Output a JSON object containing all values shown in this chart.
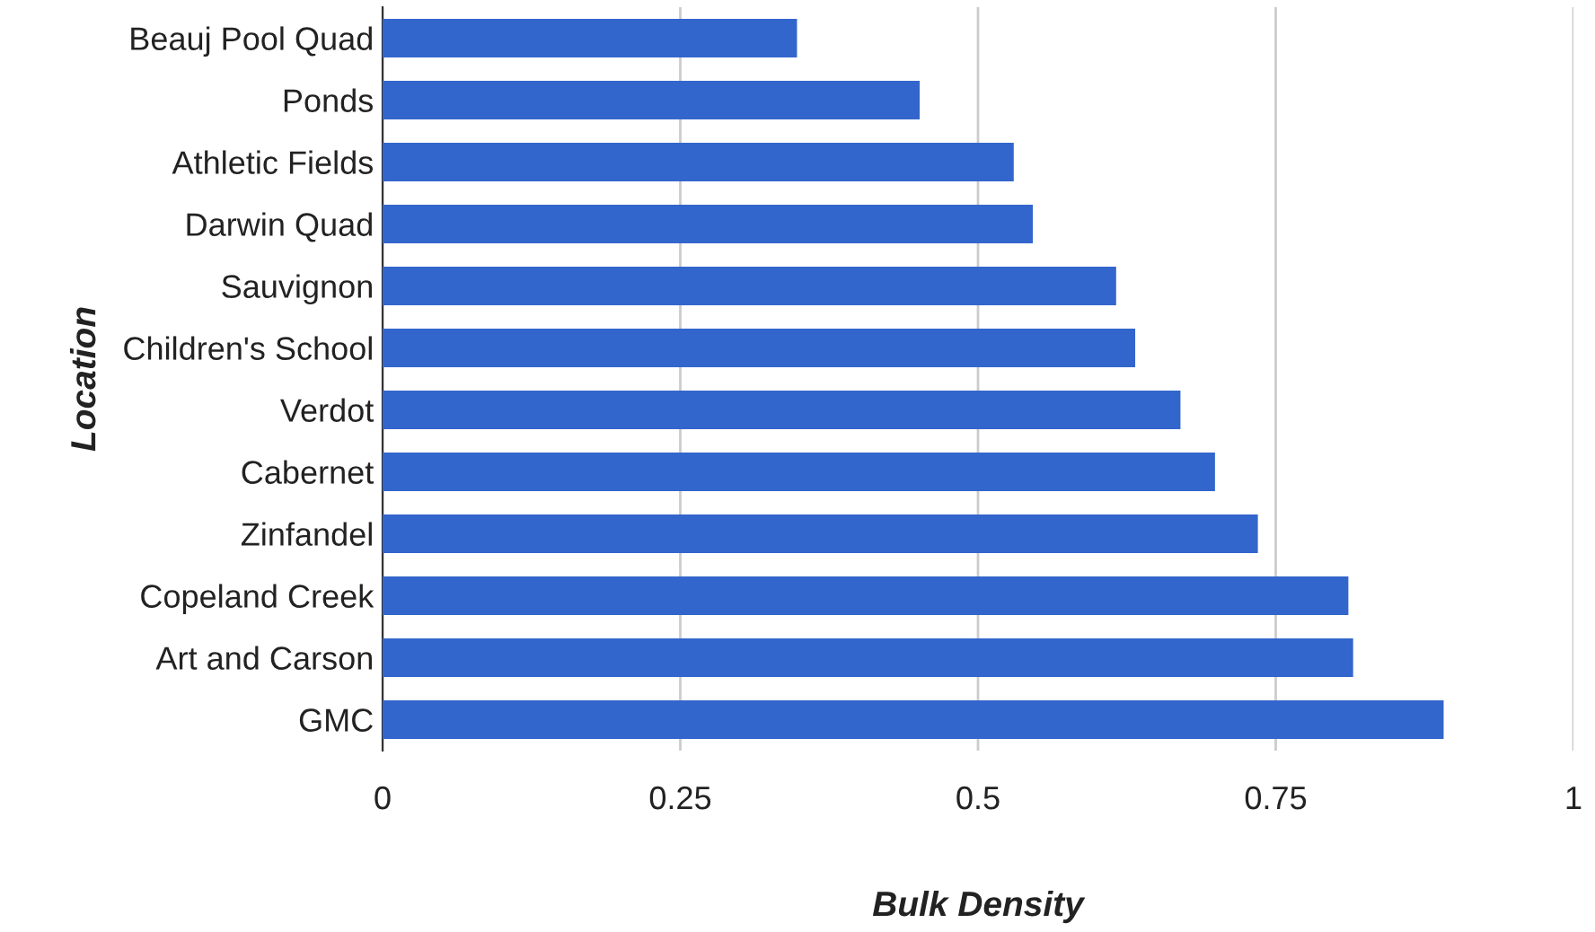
{
  "chart_data": {
    "type": "bar",
    "orientation": "horizontal",
    "xlabel": "Bulk Density",
    "ylabel": "Location",
    "categories": [
      "Beauj Pool Quad",
      "Ponds",
      "Athletic Fields",
      "Darwin Quad",
      "Sauvignon",
      "Children's School",
      "Verdot",
      "Cabernet",
      "Zinfandel",
      "Copeland Creek",
      "Art and Carson",
      "GMC"
    ],
    "values": [
      0.348,
      0.451,
      0.53,
      0.546,
      0.616,
      0.632,
      0.67,
      0.699,
      0.735,
      0.811,
      0.815,
      0.891
    ],
    "color": "#3366cc",
    "xlim": [
      0,
      1
    ],
    "xticks": [
      0,
      {
        "value": 0.25,
        "label": "0.25"
      },
      {
        "value": 0.5,
        "label": "0.5"
      },
      {
        "value": 0.75,
        "label": "0.75"
      },
      1
    ],
    "grid": "x",
    "legend": false
  }
}
